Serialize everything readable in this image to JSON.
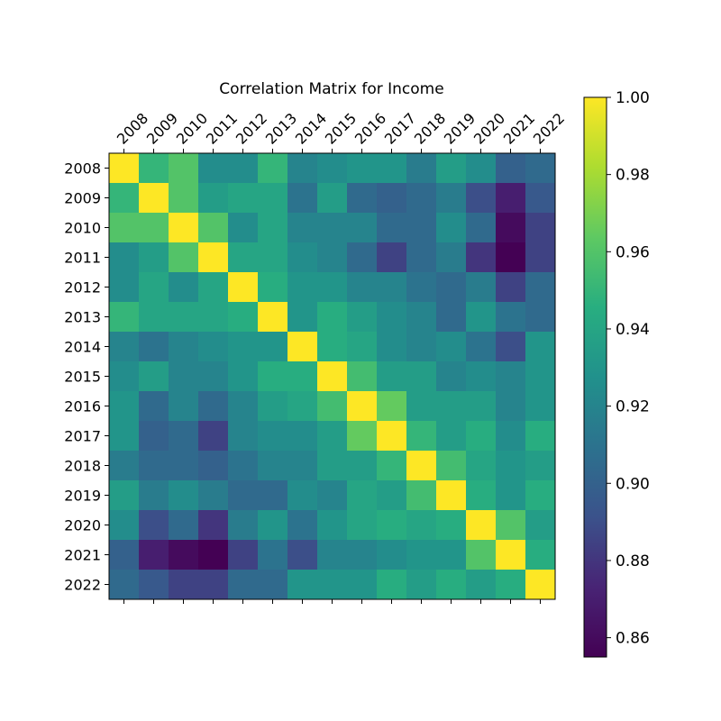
{
  "chart_data": {
    "type": "heatmap",
    "title": "Correlation Matrix for Income",
    "xlabel": "",
    "ylabel": "",
    "x_categories": [
      "2008",
      "2009",
      "2010",
      "2011",
      "2012",
      "2013",
      "2014",
      "2015",
      "2016",
      "2017",
      "2018",
      "2019",
      "2020",
      "2021",
      "2022"
    ],
    "y_categories": [
      "2008",
      "2009",
      "2010",
      "2011",
      "2012",
      "2013",
      "2014",
      "2015",
      "2016",
      "2017",
      "2018",
      "2019",
      "2020",
      "2021",
      "2022"
    ],
    "colormap": "viridis",
    "vmin": 0.855,
    "vmax": 1.0,
    "colorbar_ticks": [
      0.86,
      0.88,
      0.9,
      0.92,
      0.94,
      0.96,
      0.98,
      1.0
    ],
    "colorbar_tick_labels": [
      "0.86",
      "0.88",
      "0.90",
      "0.92",
      "0.94",
      "0.96",
      "0.98",
      "1.00"
    ],
    "x_tick_position": "top",
    "grid": false,
    "values": [
      [
        1.0,
        0.95,
        0.96,
        0.925,
        0.925,
        0.95,
        0.92,
        0.925,
        0.93,
        0.93,
        0.915,
        0.935,
        0.925,
        0.9,
        0.905
      ],
      [
        0.95,
        1.0,
        0.96,
        0.935,
        0.94,
        0.94,
        0.91,
        0.935,
        0.905,
        0.9,
        0.905,
        0.915,
        0.89,
        0.87,
        0.895
      ],
      [
        0.96,
        0.96,
        1.0,
        0.96,
        0.925,
        0.94,
        0.92,
        0.92,
        0.92,
        0.905,
        0.905,
        0.925,
        0.905,
        0.86,
        0.885
      ],
      [
        0.925,
        0.935,
        0.96,
        1.0,
        0.94,
        0.94,
        0.925,
        0.92,
        0.905,
        0.885,
        0.905,
        0.915,
        0.88,
        0.855,
        0.885
      ],
      [
        0.925,
        0.94,
        0.925,
        0.94,
        1.0,
        0.945,
        0.93,
        0.93,
        0.92,
        0.92,
        0.91,
        0.905,
        0.915,
        0.885,
        0.905
      ],
      [
        0.95,
        0.94,
        0.94,
        0.94,
        0.945,
        1.0,
        0.93,
        0.945,
        0.935,
        0.925,
        0.92,
        0.905,
        0.93,
        0.91,
        0.905
      ],
      [
        0.92,
        0.91,
        0.92,
        0.925,
        0.93,
        0.93,
        1.0,
        0.945,
        0.94,
        0.925,
        0.92,
        0.925,
        0.91,
        0.89,
        0.93
      ],
      [
        0.925,
        0.935,
        0.92,
        0.92,
        0.93,
        0.945,
        0.945,
        1.0,
        0.955,
        0.935,
        0.935,
        0.92,
        0.925,
        0.92,
        0.93
      ],
      [
        0.93,
        0.905,
        0.92,
        0.905,
        0.92,
        0.935,
        0.94,
        0.955,
        1.0,
        0.965,
        0.935,
        0.935,
        0.935,
        0.92,
        0.93
      ],
      [
        0.93,
        0.9,
        0.905,
        0.885,
        0.92,
        0.925,
        0.925,
        0.935,
        0.965,
        1.0,
        0.95,
        0.935,
        0.945,
        0.925,
        0.945
      ],
      [
        0.915,
        0.905,
        0.905,
        0.9,
        0.91,
        0.92,
        0.92,
        0.935,
        0.935,
        0.95,
        1.0,
        0.955,
        0.94,
        0.93,
        0.935
      ],
      [
        0.935,
        0.915,
        0.925,
        0.915,
        0.905,
        0.905,
        0.925,
        0.92,
        0.94,
        0.935,
        0.955,
        1.0,
        0.945,
        0.93,
        0.945
      ],
      [
        0.925,
        0.89,
        0.905,
        0.88,
        0.915,
        0.93,
        0.91,
        0.93,
        0.94,
        0.945,
        0.94,
        0.945,
        1.0,
        0.96,
        0.935
      ],
      [
        0.9,
        0.87,
        0.86,
        0.855,
        0.885,
        0.91,
        0.89,
        0.92,
        0.92,
        0.925,
        0.93,
        0.93,
        0.96,
        1.0,
        0.945
      ],
      [
        0.905,
        0.895,
        0.885,
        0.885,
        0.905,
        0.905,
        0.93,
        0.93,
        0.93,
        0.945,
        0.935,
        0.945,
        0.935,
        0.945,
        1.0
      ]
    ]
  }
}
